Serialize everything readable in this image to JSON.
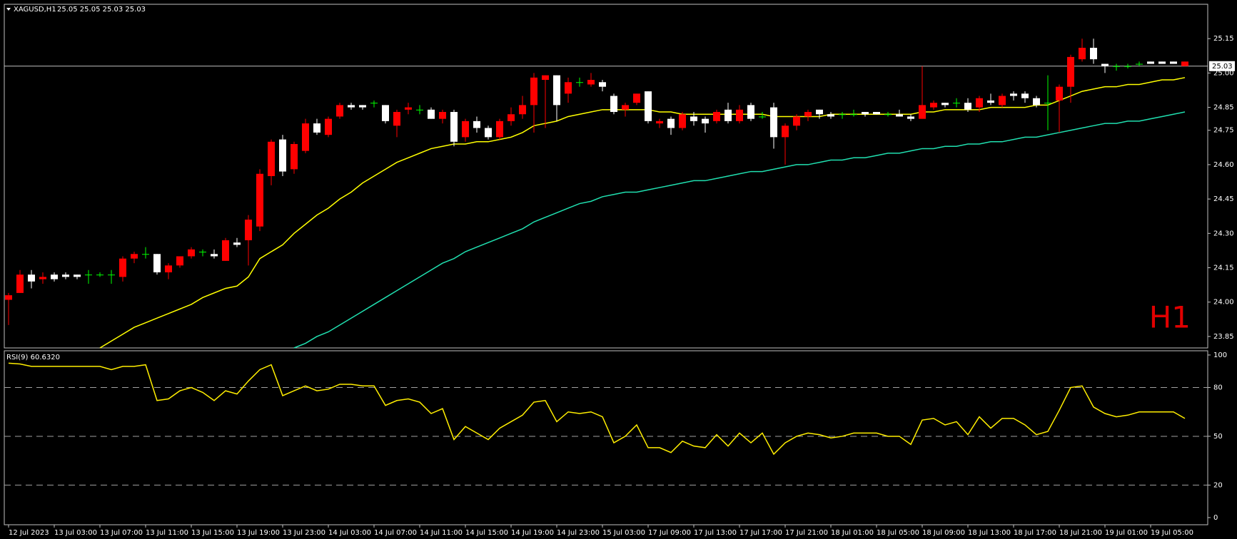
{
  "chart_data": [
    {
      "type": "candlestick",
      "title": "XAGUSD,H1",
      "subtitle": "25.05 25.05 25.03 25.03",
      "annotation": "H1",
      "up_color": "#ffffff",
      "down_color": "#ff0000",
      "doji_color": "#00ff00",
      "categories": [
        "12 Jul 2023",
        null,
        null,
        null,
        "13 Jul 03:00",
        null,
        null,
        null,
        "13 Jul 07:00",
        null,
        null,
        null,
        "13 Jul 11:00",
        null,
        null,
        null,
        "13 Jul 15:00",
        null,
        null,
        null,
        "13 Jul 19:00",
        null,
        null,
        null,
        "13 Jul 23:00",
        null,
        null,
        null,
        "14 Jul 03:00",
        null,
        null,
        null,
        "14 Jul 07:00",
        null,
        null,
        null,
        "14 Jul 11:00",
        null,
        null,
        null,
        "14 Jul 15:00",
        null,
        null,
        null,
        "14 Jul 19:00",
        null,
        null,
        null,
        "14 Jul 23:00",
        null,
        null,
        null,
        "15 Jul 03:00",
        null,
        null,
        null,
        "17 Jul 09:00",
        null,
        null,
        null,
        "17 Jul 13:00",
        null,
        null,
        null,
        "17 Jul 17:00",
        null,
        null,
        null,
        "17 Jul 21:00",
        null,
        null,
        null,
        "18 Jul 01:00",
        null,
        null,
        null,
        "18 Jul 05:00",
        null,
        null,
        null,
        "18 Jul 09:00",
        null,
        null,
        null,
        "18 Jul 13:00",
        null,
        null,
        null,
        "18 Jul 17:00",
        null,
        null,
        null,
        "18 Jul 21:00",
        null,
        null,
        null,
        "19 Jul 01:00",
        null,
        null,
        null,
        "19 Jul 05:00",
        null,
        null,
        null
      ],
      "open": [
        24.03,
        24.12,
        24.09,
        24.11,
        24.1,
        24.11,
        24.11,
        24.12,
        24.12,
        24.12,
        24.19,
        24.21,
        24.21,
        24.13,
        24.16,
        24.2,
        24.23,
        24.22,
        24.2,
        24.27,
        24.25,
        24.36,
        24.56,
        24.7,
        24.57,
        24.69,
        24.78,
        24.74,
        24.8,
        24.86,
        24.85,
        24.85,
        24.87,
        24.79,
        24.83,
        24.85,
        24.84,
        24.8,
        24.83,
        24.7,
        24.79,
        24.76,
        24.72,
        24.79,
        24.82,
        24.86,
        24.98,
        24.99,
        24.86,
        24.96,
        24.96,
        24.97,
        24.94,
        24.83,
        24.86,
        24.91,
        24.79,
        24.79,
        24.76,
        24.82,
        24.79,
        24.78,
        24.83,
        24.79,
        24.84,
        24.8,
        24.81,
        24.72,
        24.77,
        24.81,
        24.83,
        24.82,
        24.81,
        24.82,
        24.82,
        24.82,
        24.82,
        24.82,
        24.81,
        24.8,
        24.86,
        24.87,
        24.86,
        24.87,
        24.84,
        24.89,
        24.87,
        24.9,
        24.9,
        24.89,
        24.86,
        24.87,
        24.94,
        25.07,
        25.11,
        25.06,
        25.03,
        25.03,
        25.03,
        25.04,
        25.04,
        25.04,
        25.04,
        25.05
      ],
      "high": [
        24.04,
        24.14,
        24.14,
        24.13,
        24.13,
        24.13,
        24.12,
        24.14,
        24.13,
        24.14,
        24.2,
        24.22,
        24.24,
        24.21,
        24.17,
        24.2,
        24.24,
        24.23,
        24.23,
        24.28,
        24.28,
        24.38,
        24.58,
        24.71,
        24.73,
        24.7,
        24.8,
        24.8,
        24.81,
        24.87,
        24.87,
        24.86,
        24.88,
        24.86,
        24.84,
        24.87,
        24.86,
        24.85,
        24.84,
        24.84,
        24.8,
        24.81,
        24.77,
        24.8,
        24.85,
        24.9,
        25.0,
        24.99,
        24.99,
        24.98,
        24.98,
        25.0,
        24.97,
        24.91,
        24.87,
        24.91,
        24.92,
        24.8,
        24.81,
        24.83,
        24.83,
        24.81,
        24.84,
        24.87,
        24.86,
        24.87,
        24.83,
        24.87,
        24.78,
        24.82,
        24.84,
        24.84,
        24.83,
        24.83,
        24.84,
        24.83,
        24.83,
        24.83,
        24.84,
        24.82,
        25.03,
        24.88,
        24.87,
        24.89,
        24.89,
        24.9,
        24.91,
        24.91,
        24.92,
        24.92,
        24.9,
        24.99,
        24.95,
        25.08,
        25.15,
        25.15,
        25.04,
        25.04,
        25.04,
        25.05,
        25.05,
        25.05,
        25.05,
        25.05
      ],
      "low": [
        23.9,
        24.04,
        24.06,
        24.08,
        24.09,
        24.1,
        24.1,
        24.08,
        24.11,
        24.08,
        24.09,
        24.17,
        24.19,
        24.12,
        24.1,
        24.15,
        24.19,
        24.2,
        24.19,
        24.18,
        24.24,
        24.16,
        24.31,
        24.51,
        24.55,
        24.56,
        24.65,
        24.73,
        24.72,
        24.8,
        24.84,
        24.84,
        24.85,
        24.78,
        24.72,
        24.82,
        24.82,
        24.8,
        24.78,
        24.68,
        24.7,
        24.74,
        24.71,
        24.71,
        24.77,
        24.8,
        24.74,
        24.76,
        24.79,
        24.87,
        24.94,
        24.94,
        24.92,
        24.82,
        24.81,
        24.86,
        24.78,
        24.76,
        24.73,
        24.75,
        24.77,
        24.74,
        24.78,
        24.78,
        24.78,
        24.79,
        24.8,
        24.67,
        24.6,
        24.75,
        24.79,
        24.8,
        24.8,
        24.8,
        24.81,
        24.81,
        24.82,
        24.81,
        24.81,
        24.79,
        24.8,
        24.84,
        24.85,
        24.85,
        24.83,
        24.83,
        24.86,
        24.85,
        24.88,
        24.87,
        24.85,
        24.75,
        24.74,
        24.87,
        25.05,
        25.04,
        25.0,
        25.01,
        25.02,
        25.03,
        25.04,
        25.04,
        25.04,
        25.03
      ],
      "close": [
        24.01,
        24.04,
        24.12,
        24.1,
        24.12,
        24.12,
        24.12,
        24.12,
        24.12,
        24.12,
        24.11,
        24.19,
        24.21,
        24.21,
        24.13,
        24.16,
        24.2,
        24.22,
        24.21,
        24.18,
        24.26,
        24.27,
        24.33,
        24.55,
        24.71,
        24.58,
        24.66,
        24.78,
        24.73,
        24.81,
        24.86,
        24.86,
        24.87,
        24.86,
        24.77,
        24.84,
        24.84,
        24.84,
        24.8,
        24.83,
        24.72,
        24.79,
        24.76,
        24.72,
        24.79,
        24.82,
        24.86,
        24.97,
        24.99,
        24.91,
        24.96,
        24.95,
        24.96,
        24.9,
        24.84,
        24.87,
        24.92,
        24.78,
        24.8,
        24.76,
        24.81,
        24.8,
        24.79,
        24.84,
        24.79,
        24.86,
        24.81,
        24.85,
        24.72,
        24.77,
        24.81,
        24.84,
        24.82,
        24.82,
        24.82,
        24.83,
        24.83,
        24.82,
        24.82,
        24.81,
        24.8,
        24.85,
        24.87,
        24.87,
        24.87,
        24.85,
        24.88,
        24.86,
        24.91,
        24.91,
        24.89,
        24.87,
        24.88,
        24.94,
        25.06,
        25.11,
        25.04,
        25.03,
        25.03,
        25.04,
        25.05,
        25.05,
        25.05,
        25.03
      ],
      "lines": [
        {
          "color": "#ffff00",
          "values": [
            null,
            null,
            null,
            null,
            null,
            null,
            null,
            null,
            23.8,
            23.83,
            23.86,
            23.89,
            23.91,
            23.93,
            23.95,
            23.97,
            23.99,
            24.02,
            24.04,
            24.06,
            24.07,
            24.11,
            24.19,
            24.22,
            24.25,
            24.3,
            24.34,
            24.38,
            24.41,
            24.45,
            24.48,
            24.52,
            24.55,
            24.58,
            24.61,
            24.63,
            24.65,
            24.67,
            24.68,
            24.69,
            24.69,
            24.7,
            24.7,
            24.71,
            24.72,
            24.74,
            24.77,
            24.78,
            24.79,
            24.81,
            24.82,
            24.83,
            24.84,
            24.84,
            24.84,
            24.84,
            24.84,
            24.83,
            24.83,
            24.82,
            24.82,
            24.82,
            24.82,
            24.82,
            24.82,
            24.82,
            24.82,
            24.81,
            24.81,
            24.81,
            24.81,
            24.81,
            24.82,
            24.82,
            24.82,
            24.82,
            24.82,
            24.82,
            24.82,
            24.82,
            24.83,
            24.83,
            24.84,
            24.84,
            24.84,
            24.84,
            24.85,
            24.85,
            24.85,
            24.85,
            24.86,
            24.86,
            24.88,
            24.9,
            24.92,
            24.93,
            24.94,
            24.94,
            24.95,
            24.95,
            24.96,
            24.97,
            24.97,
            24.98
          ]
        },
        {
          "color": "#20e0b0",
          "values": [
            null,
            null,
            null,
            null,
            null,
            null,
            null,
            null,
            null,
            null,
            null,
            null,
            null,
            null,
            null,
            null,
            null,
            null,
            null,
            null,
            null,
            null,
            null,
            null,
            null,
            23.8,
            23.82,
            23.85,
            23.87,
            23.9,
            23.93,
            23.96,
            23.99,
            24.02,
            24.05,
            24.08,
            24.11,
            24.14,
            24.17,
            24.19,
            24.22,
            24.24,
            24.26,
            24.28,
            24.3,
            24.32,
            24.35,
            24.37,
            24.39,
            24.41,
            24.43,
            24.44,
            24.46,
            24.47,
            24.48,
            24.48,
            24.49,
            24.5,
            24.51,
            24.52,
            24.53,
            24.53,
            24.54,
            24.55,
            24.56,
            24.57,
            24.57,
            24.58,
            24.59,
            24.6,
            24.6,
            24.61,
            24.62,
            24.62,
            24.63,
            24.63,
            24.64,
            24.65,
            24.65,
            24.66,
            24.67,
            24.67,
            24.68,
            24.68,
            24.69,
            24.69,
            24.7,
            24.7,
            24.71,
            24.72,
            24.72,
            24.73,
            24.74,
            24.75,
            24.76,
            24.77,
            24.78,
            24.78,
            24.79,
            24.79,
            24.8,
            24.81,
            24.82,
            24.83
          ]
        }
      ],
      "last_price": 25.03,
      "ylim": [
        23.8,
        25.3
      ],
      "yticks": [
        25.15,
        {
          "value": 25.0,
          "label": "25.00"
        },
        24.85,
        24.75,
        {
          "value": 24.6,
          "label": "24.60"
        },
        24.45,
        {
          "value": 24.3,
          "label": "24.30"
        },
        24.15,
        {
          "value": 24.0,
          "label": "24.00"
        },
        23.85
      ]
    },
    {
      "type": "line",
      "title": "RSI(9) 60.6320",
      "color": "#ffee00",
      "values": [
        95,
        94.5,
        93,
        93,
        93,
        93,
        93,
        93,
        93,
        91,
        93,
        93,
        94,
        72,
        73,
        78,
        80,
        77,
        72,
        78,
        76,
        84,
        91,
        94,
        75,
        78,
        81,
        78,
        79,
        82,
        82,
        81,
        81,
        69,
        72,
        73,
        71,
        64,
        67,
        48,
        56,
        52,
        48,
        55,
        59,
        63,
        71,
        72,
        59,
        65,
        64,
        65,
        62,
        46,
        50,
        57,
        43,
        43,
        40,
        47,
        44,
        43,
        51,
        44,
        52,
        46,
        52,
        39,
        46,
        50,
        52,
        51,
        49,
        50,
        52,
        52,
        52,
        50,
        50,
        45,
        60,
        61,
        57,
        59,
        51,
        62,
        55,
        61,
        61,
        57,
        51,
        53,
        66,
        80,
        81,
        68,
        64,
        62,
        63,
        65,
        65,
        65,
        65,
        61
      ],
      "ylim": [
        -4.4,
        102.6
      ],
      "yticks": [
        100,
        80,
        50,
        20,
        0
      ],
      "levels": [
        80,
        50,
        20
      ]
    }
  ]
}
